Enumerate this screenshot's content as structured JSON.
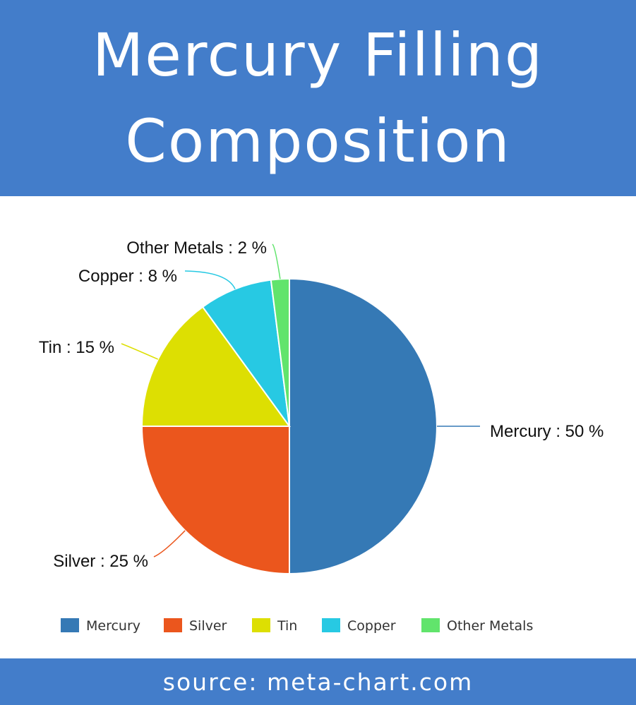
{
  "header": {
    "title_line1": "Mercury Filling",
    "title_line2": "Composition"
  },
  "footer": {
    "source": "source: meta-chart.com"
  },
  "colors": {
    "banner": "#437dca",
    "Mercury": "#3579b5",
    "Silver": "#eb561d",
    "Tin": "#dddf02",
    "Copper": "#27c9e3",
    "Other Metals": "#61e46c"
  },
  "chart_data": {
    "type": "pie",
    "title": "Mercury Filling Composition",
    "unit": "%",
    "slices": [
      {
        "label": "Mercury",
        "value": 50,
        "color": "#3579b5",
        "data_label": "Mercury : 50 %"
      },
      {
        "label": "Silver",
        "value": 25,
        "color": "#eb561d",
        "data_label": "Silver : 25 %"
      },
      {
        "label": "Tin",
        "value": 15,
        "color": "#dddf02",
        "data_label": "Tin : 15 %"
      },
      {
        "label": "Copper",
        "value": 8,
        "color": "#27c9e3",
        "data_label": "Copper : 8 %"
      },
      {
        "label": "Other Metals",
        "value": 2,
        "color": "#61e46c",
        "data_label": "Other Metals : 2 %"
      }
    ],
    "start_angle": "12 o'clock",
    "direction": "clockwise",
    "legend": {
      "position": "bottom",
      "entries": [
        "Mercury",
        "Silver",
        "Tin",
        "Copper",
        "Other Metals"
      ]
    }
  }
}
